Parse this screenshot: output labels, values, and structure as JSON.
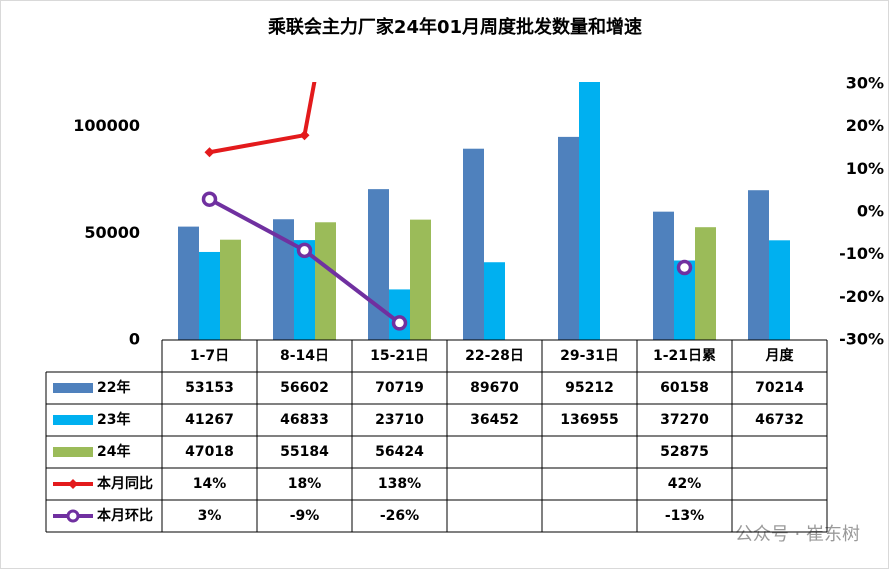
{
  "chart_data": {
    "type": "bar_line_table",
    "title": "乘联会主力厂家24年01月周度批发数量和增速",
    "categories": [
      "1-7日",
      "8-14日",
      "15-21日",
      "22-28日",
      "29-31日",
      "1-21日累",
      "月度"
    ],
    "series": [
      {
        "name": "22年",
        "type": "bar",
        "color": "#4f81bd",
        "values": [
          53153,
          56602,
          70719,
          89670,
          95212,
          60158,
          70214
        ]
      },
      {
        "name": "23年",
        "type": "bar",
        "color": "#00b0f0",
        "values": [
          41267,
          46833,
          23710,
          36452,
          136955,
          37270,
          46732
        ]
      },
      {
        "name": "24年",
        "type": "bar",
        "color": "#9bbb59",
        "values": [
          47018,
          55184,
          56424,
          null,
          null,
          52875,
          null
        ]
      },
      {
        "name": "本月同比",
        "type": "line",
        "axis": "y2",
        "color": "#e31a1c",
        "marker": "diamond",
        "values": [
          14,
          18,
          138,
          null,
          null,
          42,
          null
        ],
        "value_labels": [
          "14%",
          "18%",
          "138%",
          null,
          null,
          "42%",
          null
        ]
      },
      {
        "name": "本月环比",
        "type": "line",
        "axis": "y2",
        "color": "#7030a0",
        "marker": "circle",
        "values": [
          3,
          -9,
          -26,
          null,
          null,
          -13,
          null
        ],
        "value_labels": [
          "3%",
          "-9%",
          "-26%",
          null,
          null,
          "-13%",
          null
        ]
      }
    ],
    "ylim": [
      0,
      120000
    ],
    "yticks": [
      0,
      50000,
      100000
    ],
    "y2lim": [
      -30,
      30
    ],
    "y2ticks": [
      {
        "value": 30,
        "label": "30%"
      },
      {
        "value": 20,
        "label": "20%"
      },
      {
        "value": 10,
        "label": "10%"
      },
      {
        "value": 0,
        "label": "0%"
      },
      {
        "value": -10,
        "label": "-10%"
      },
      {
        "value": -20,
        "label": "-20%"
      },
      {
        "value": -30,
        "label": "-30%"
      }
    ],
    "grid": false,
    "watermark": "公众号 · 崔东树"
  }
}
